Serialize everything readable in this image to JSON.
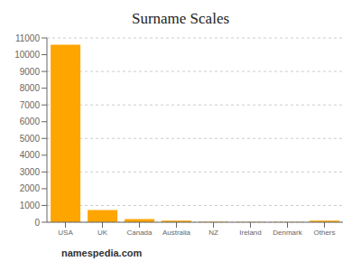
{
  "chart_data": {
    "type": "bar",
    "title": "Surname Scales",
    "categories": [
      "USA",
      "UK",
      "Canada",
      "Australia",
      "NZ",
      "Ireland",
      "Denmark",
      "Others"
    ],
    "values": [
      10600,
      730,
      190,
      90,
      30,
      20,
      15,
      90
    ],
    "color": "#FFA500",
    "ylim": [
      0,
      11000
    ],
    "yticks": [
      0,
      1000,
      2000,
      3000,
      4000,
      5000,
      6000,
      7000,
      8000,
      9000,
      10000,
      11000
    ],
    "grid": true,
    "annotations": [
      "namespedia.com"
    ]
  }
}
